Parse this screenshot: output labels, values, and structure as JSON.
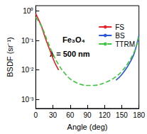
{
  "chart_data": {
    "type": "line",
    "xlabel": "Angle (deg)",
    "ylabel": "BSDF (sr⁻¹)",
    "annotations": [
      "Fe₃O₄",
      "λ = 500 nm"
    ],
    "log": "y",
    "xlim": [
      0,
      180
    ],
    "xticks": [
      0,
      30,
      60,
      90,
      120,
      150,
      180
    ],
    "ylim": [
      0.0005,
      1.5
    ],
    "yticks": [
      {
        "value": 0.001,
        "label": "10⁻³"
      },
      {
        "value": 0.01,
        "label": "10⁻²"
      },
      {
        "value": 0.1,
        "label": "10⁻¹"
      },
      {
        "value": 1,
        "label": "10⁰"
      }
    ],
    "grid": false,
    "legend": "upper right",
    "series": [
      {
        "name": "FS",
        "color": "#e8202a",
        "line_style": "solid",
        "x": [
          0,
          5,
          10,
          15,
          20,
          25,
          30,
          35,
          40
        ],
        "values": [
          0.8,
          0.5,
          0.3,
          0.15,
          0.08,
          0.045,
          0.025,
          0.015,
          0.01
        ]
      },
      {
        "name": "BS",
        "color": "#2b56d9",
        "line_style": "solid",
        "x": [
          140,
          150,
          160,
          170,
          175,
          180
        ],
        "values": [
          0.0045,
          0.007,
          0.013,
          0.03,
          0.06,
          0.15
        ]
      },
      {
        "name": "TTRM",
        "color": "#3ec43e",
        "line_style": "dashed",
        "x": [
          0,
          10,
          20,
          30,
          40,
          50,
          60,
          70,
          80,
          90,
          100,
          110,
          120,
          130,
          140,
          150,
          160,
          170,
          175,
          180
        ],
        "values": [
          0.6,
          0.3,
          0.1,
          0.035,
          0.015,
          0.008,
          0.005,
          0.0038,
          0.0032,
          0.003,
          0.003,
          0.0032,
          0.0037,
          0.0045,
          0.006,
          0.009,
          0.016,
          0.035,
          0.06,
          0.13
        ]
      }
    ]
  }
}
